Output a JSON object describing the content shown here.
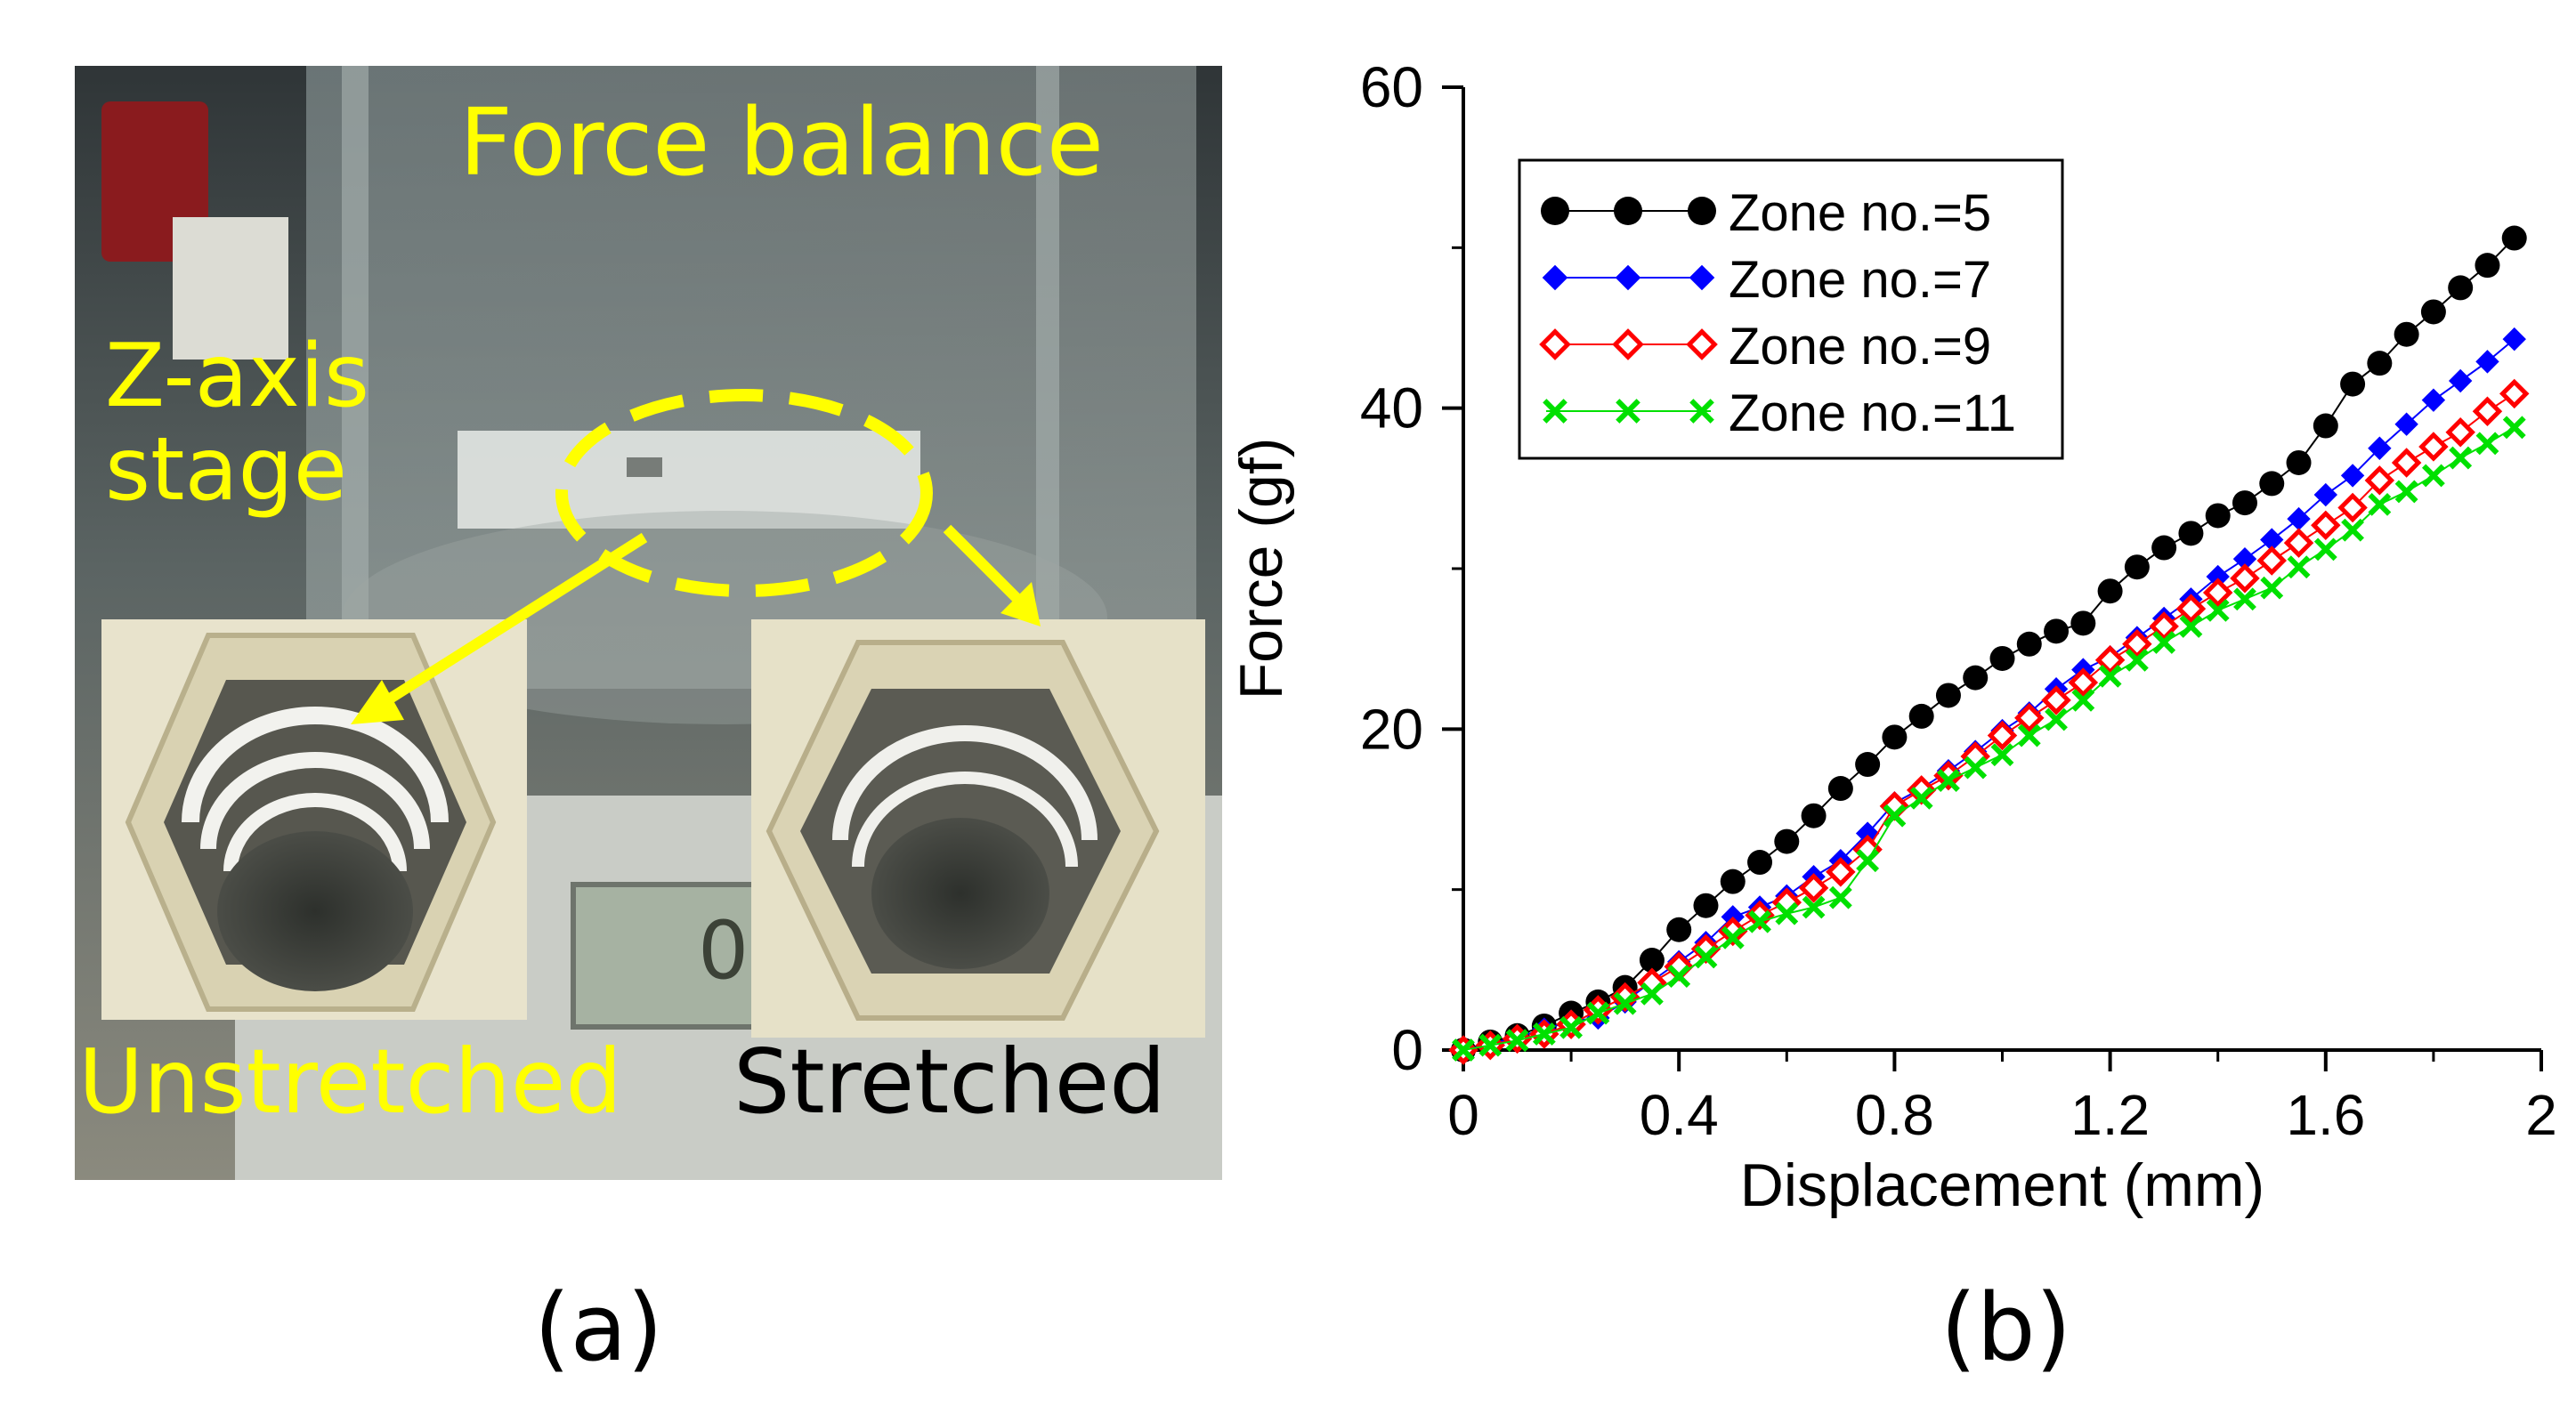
{
  "figure": {
    "panel_a": {
      "caption": "(a)",
      "labels": {
        "force_balance": "Force balance",
        "z_axis_line1": "Z-axis",
        "z_axis_line2": "stage",
        "unstretched": "Unstretched",
        "stretched": "Stretched",
        "display_digit": "0"
      }
    },
    "panel_b": {
      "caption": "(b)"
    }
  },
  "colors": {
    "annotation_yellow": "#ffff00",
    "zone5": "#000000",
    "zone7": "#0000ff",
    "zone9": "#ff0000",
    "zone11": "#00e000"
  },
  "chart_data": {
    "type": "line",
    "xlabel": "Displacement (mm)",
    "ylabel": "Force (gf)",
    "xlim": [
      0,
      2
    ],
    "ylim": [
      0,
      60
    ],
    "xticks": [
      0,
      0.4,
      0.8,
      1.2,
      1.6,
      2
    ],
    "xtick_labels": [
      "0",
      "0.4",
      "0.8",
      "1.2",
      "1.6",
      "2"
    ],
    "yticks": [
      0,
      20,
      40,
      60
    ],
    "ytick_labels": [
      "0",
      "20",
      "40",
      "60"
    ],
    "legend_position": "top-left",
    "x": [
      0,
      0.05,
      0.1,
      0.15,
      0.2,
      0.25,
      0.3,
      0.35,
      0.4,
      0.45,
      0.5,
      0.55,
      0.6,
      0.65,
      0.7,
      0.75,
      0.8,
      0.85,
      0.9,
      0.95,
      1.0,
      1.05,
      1.1,
      1.15,
      1.2,
      1.25,
      1.3,
      1.35,
      1.4,
      1.45,
      1.5,
      1.55,
      1.6,
      1.65,
      1.7,
      1.75,
      1.8,
      1.85,
      1.9,
      1.95
    ],
    "series": [
      {
        "name": "Zone no.=5",
        "marker": "circle",
        "values": [
          0,
          0.5,
          0.9,
          1.5,
          2.3,
          3.0,
          3.9,
          5.6,
          7.5,
          9.0,
          10.5,
          11.7,
          13.0,
          14.6,
          16.3,
          17.8,
          19.5,
          20.8,
          22.1,
          23.2,
          24.4,
          25.3,
          26.1,
          26.6,
          28.6,
          30.1,
          31.3,
          32.2,
          33.3,
          34.1,
          35.3,
          36.6,
          38.9,
          41.5,
          42.8,
          44.6,
          46.0,
          47.5,
          48.9,
          50.6
        ]
      },
      {
        "name": "Zone no.=7",
        "marker": "diamond",
        "values": [
          0,
          0.4,
          0.8,
          1.3,
          1.8,
          2.0,
          3.0,
          4.3,
          5.5,
          6.7,
          8.3,
          8.9,
          9.6,
          10.8,
          11.8,
          13.5,
          15.4,
          16.3,
          17.4,
          18.6,
          19.9,
          21.0,
          22.5,
          23.7,
          24.5,
          25.7,
          26.9,
          28.1,
          29.5,
          30.6,
          31.8,
          33.1,
          34.6,
          35.8,
          37.5,
          39.0,
          40.5,
          41.7,
          42.9,
          44.3
        ]
      },
      {
        "name": "Zone no.=9",
        "marker": "open-diamond",
        "values": [
          0,
          0.3,
          0.7,
          1.0,
          1.6,
          2.5,
          3.3,
          4.2,
          5.2,
          6.3,
          7.4,
          8.4,
          9.2,
          10.1,
          11.1,
          12.5,
          15.2,
          16.2,
          17.1,
          18.3,
          19.6,
          20.7,
          21.8,
          22.9,
          24.3,
          25.3,
          26.4,
          27.5,
          28.5,
          29.4,
          30.5,
          31.6,
          32.7,
          33.8,
          35.5,
          36.6,
          37.6,
          38.5,
          39.8,
          40.9
        ]
      },
      {
        "name": "Zone no.=11",
        "marker": "x",
        "values": [
          0,
          0.3,
          0.6,
          1.0,
          1.4,
          2.3,
          2.9,
          3.5,
          4.6,
          5.8,
          7.0,
          8.0,
          8.5,
          8.9,
          9.5,
          11.8,
          14.6,
          15.7,
          16.8,
          17.6,
          18.4,
          19.6,
          20.6,
          21.8,
          23.3,
          24.3,
          25.4,
          26.4,
          27.4,
          28.1,
          28.8,
          30.1,
          31.2,
          32.4,
          34.0,
          34.8,
          35.8,
          36.9,
          37.8,
          38.8
        ]
      }
    ]
  }
}
